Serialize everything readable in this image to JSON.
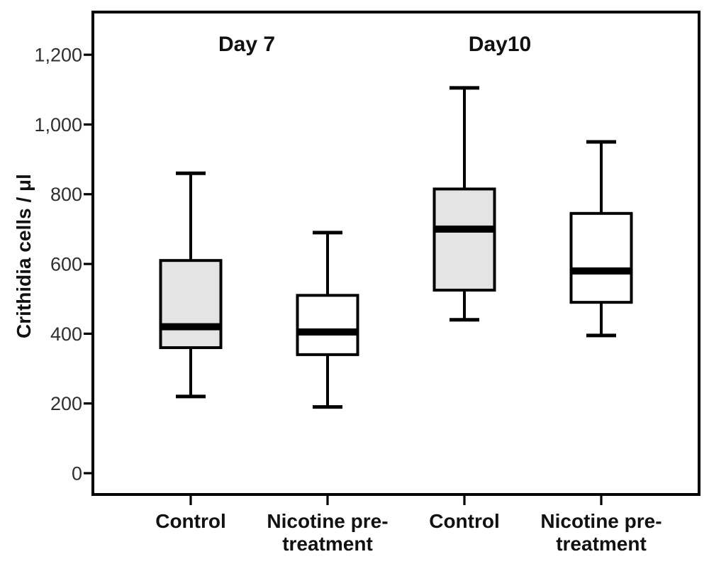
{
  "chart_data": {
    "type": "box",
    "title": "",
    "xlabel": "",
    "ylabel": "Crithidia cells / μl",
    "ylim": [
      -60,
      1330
    ],
    "grid": false,
    "legend_position": "none",
    "y_ticks": [
      {
        "value": 0,
        "label": "0"
      },
      {
        "value": 200,
        "label": "200"
      },
      {
        "value": 400,
        "label": "400"
      },
      {
        "value": 600,
        "label": "600"
      },
      {
        "value": 800,
        "label": "800"
      },
      {
        "value": 1000,
        "label": "1,000"
      },
      {
        "value": 1200,
        "label": "1,200"
      }
    ],
    "groups": [
      {
        "label": "Day 7"
      },
      {
        "label": "Day10"
      }
    ],
    "boxes": [
      {
        "group": "Day 7",
        "category": "Control",
        "label_lines": [
          "Control"
        ],
        "min": 220,
        "q1": 360,
        "median": 420,
        "q3": 610,
        "max": 860,
        "fill": "#e4e4e4"
      },
      {
        "group": "Day 7",
        "category": "Nicotine pre-treatment",
        "label_lines": [
          "Nicotine pre-",
          "treatment"
        ],
        "min": 190,
        "q1": 340,
        "median": 405,
        "q3": 510,
        "max": 690,
        "fill": "#ffffff"
      },
      {
        "group": "Day10",
        "category": "Control",
        "label_lines": [
          "Control"
        ],
        "min": 440,
        "q1": 525,
        "median": 700,
        "q3": 815,
        "max": 1105,
        "fill": "#e4e4e4"
      },
      {
        "group": "Day10",
        "category": "Nicotine pre-treatment",
        "label_lines": [
          "Nicotine pre-",
          "treatment"
        ],
        "min": 395,
        "q1": 490,
        "median": 580,
        "q3": 745,
        "max": 950,
        "fill": "#ffffff"
      }
    ],
    "colors": {
      "box_fill_grey": "#e4e4e4",
      "box_fill_white": "#ffffff",
      "line": "#000000",
      "tick_text": "#2f2f2f",
      "label_text": "#111111",
      "background": "#ffffff"
    }
  }
}
